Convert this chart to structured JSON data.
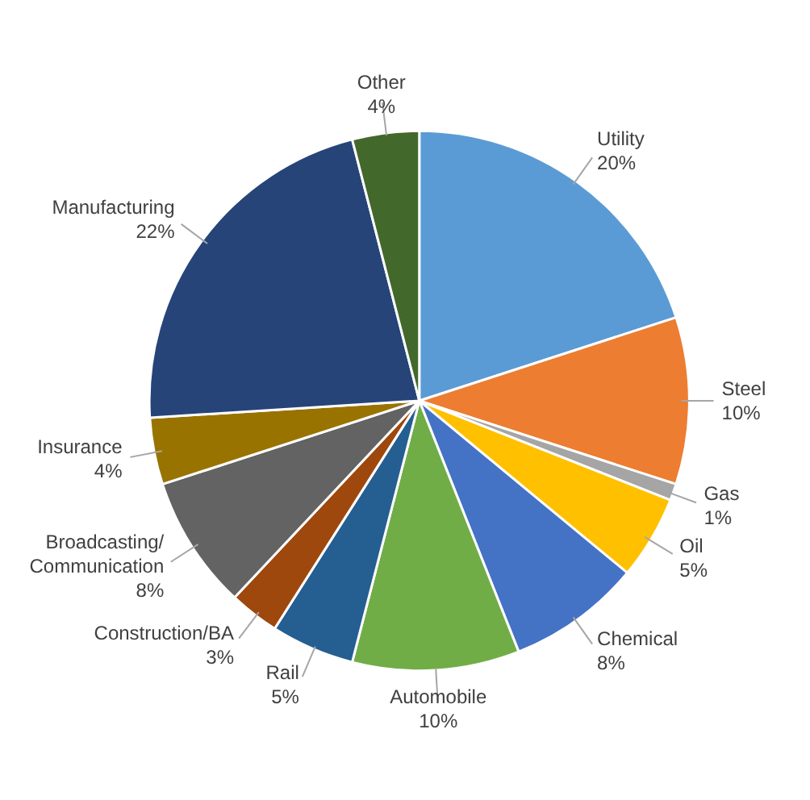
{
  "chart_data": {
    "type": "pie",
    "categories": [
      "Utility",
      "Steel",
      "Gas",
      "Oil",
      "Chemical",
      "Automobile",
      "Rail",
      "Construction/BA",
      "Broadcasting/Communication",
      "Insurance",
      "Manufacturing",
      "Other"
    ],
    "values": [
      20,
      10,
      1,
      5,
      8,
      10,
      5,
      3,
      8,
      4,
      22,
      4
    ],
    "colors": [
      "#5b9bd5",
      "#ed7d31",
      "#a5a5a5",
      "#ffc000",
      "#4472c4",
      "#70ad47",
      "#255e91",
      "#9e480e",
      "#636363",
      "#997300",
      "#264478",
      "#43682b"
    ],
    "value_labels": [
      "20%",
      "10%",
      "1%",
      "5%",
      "8%",
      "10%",
      "5%",
      "3%",
      "8%",
      "4%",
      "22%",
      "4%"
    ]
  }
}
